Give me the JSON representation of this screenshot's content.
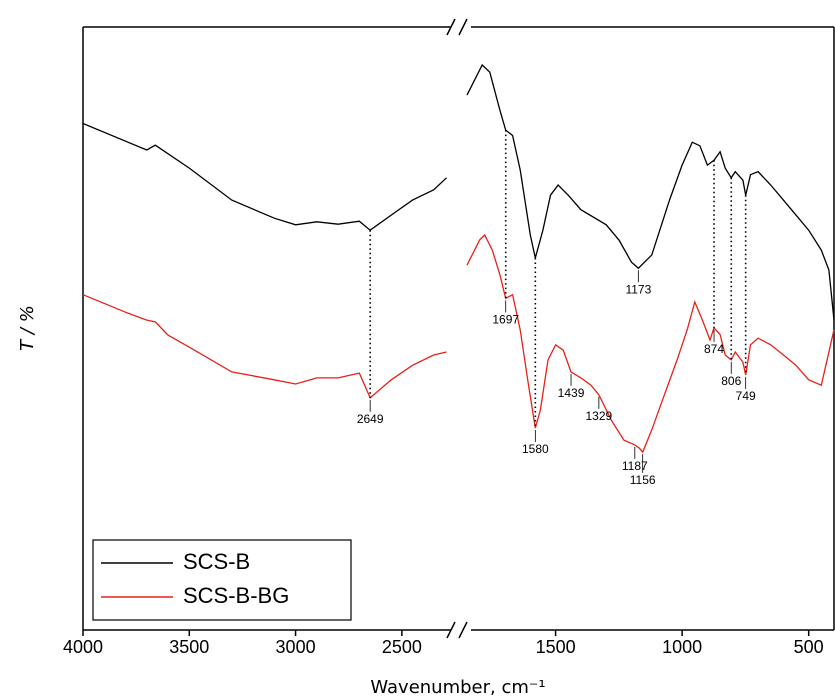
{
  "chart_data": {
    "type": "line",
    "x_label": "Wavenumber, cm⁻¹",
    "y_label": "T / %",
    "xlim": [
      4000,
      400
    ],
    "x_break": [
      2250,
      1850
    ],
    "ylim": [
      0,
      100
    ],
    "xticks": [
      4000,
      3500,
      3000,
      2500,
      1500,
      1000,
      500
    ],
    "legend": "lower left",
    "dotted_lines": [
      2649,
      1697,
      1580,
      874,
      806,
      749
    ],
    "series": [
      {
        "name": "SCS-B",
        "color": "#000000",
        "x": [
          4000,
          3700,
          3660,
          3500,
          3300,
          3100,
          3000,
          2900,
          2800,
          2700,
          2649,
          2550,
          2450,
          2350,
          2290,
          1850,
          1790,
          1760,
          1720,
          1697,
          1670,
          1640,
          1600,
          1580,
          1550,
          1520,
          1490,
          1450,
          1400,
          1300,
          1250,
          1200,
          1173,
          1120,
          1050,
          1000,
          960,
          930,
          900,
          874,
          850,
          830,
          806,
          790,
          760,
          749,
          730,
          700,
          650,
          600,
          550,
          500,
          450,
          420,
          400
        ],
        "values": [
          84,
          79.6,
          80.4,
          76.6,
          71.3,
          68.3,
          67.2,
          67.7,
          67.3,
          67.8,
          66.3,
          68.8,
          71.3,
          73,
          75,
          88.7,
          93.7,
          92.5,
          86.2,
          82.9,
          82,
          76.3,
          65.5,
          61.7,
          66.3,
          72.1,
          73.8,
          72.1,
          69.7,
          67.2,
          64.7,
          61,
          60,
          62.2,
          71.3,
          77.1,
          80.9,
          80.3,
          77.1,
          77.9,
          79.3,
          76.6,
          75,
          76,
          74.6,
          72.1,
          75.5,
          76,
          73.8,
          71.3,
          68.8,
          66.3,
          63,
          59.7,
          51.4
        ],
        "peaks": [
          1173
        ]
      },
      {
        "name": "SCS-B-BG",
        "color": "#e8201a",
        "x": [
          4000,
          3800,
          3700,
          3660,
          3600,
          3500,
          3300,
          3100,
          3000,
          2900,
          2800,
          2700,
          2649,
          2550,
          2450,
          2350,
          2290,
          1850,
          1800,
          1780,
          1750,
          1720,
          1697,
          1670,
          1640,
          1610,
          1580,
          1560,
          1530,
          1500,
          1470,
          1439,
          1400,
          1360,
          1329,
          1280,
          1230,
          1187,
          1170,
          1156,
          1120,
          1070,
          1020,
          980,
          950,
          920,
          890,
          874,
          850,
          830,
          806,
          790,
          760,
          749,
          730,
          700,
          650,
          600,
          550,
          500,
          450,
          400
        ],
        "values": [
          55.6,
          52.7,
          51.4,
          51.1,
          48.9,
          46.9,
          42.8,
          41.5,
          40.8,
          41.8,
          41.8,
          42.6,
          38.5,
          41.5,
          43.9,
          45.6,
          46.1,
          60.5,
          64.7,
          65.5,
          63,
          58.9,
          55,
          55.6,
          49.8,
          41.5,
          33.5,
          36.5,
          44.8,
          47.3,
          46.4,
          42.8,
          41.8,
          40.6,
          39,
          34.8,
          31.5,
          30.7,
          30.2,
          29.5,
          33.2,
          39,
          44.8,
          49.8,
          54.4,
          51.4,
          48.1,
          50.1,
          49,
          45.6,
          44.8,
          46.1,
          44.4,
          42.3,
          47.3,
          48.4,
          47.3,
          45.6,
          43.9,
          41.5,
          40.6,
          49.8
        ],
        "peaks": [
          2649,
          1697,
          1580,
          1439,
          1329,
          1187,
          1156,
          874,
          806,
          749
        ]
      }
    ]
  }
}
